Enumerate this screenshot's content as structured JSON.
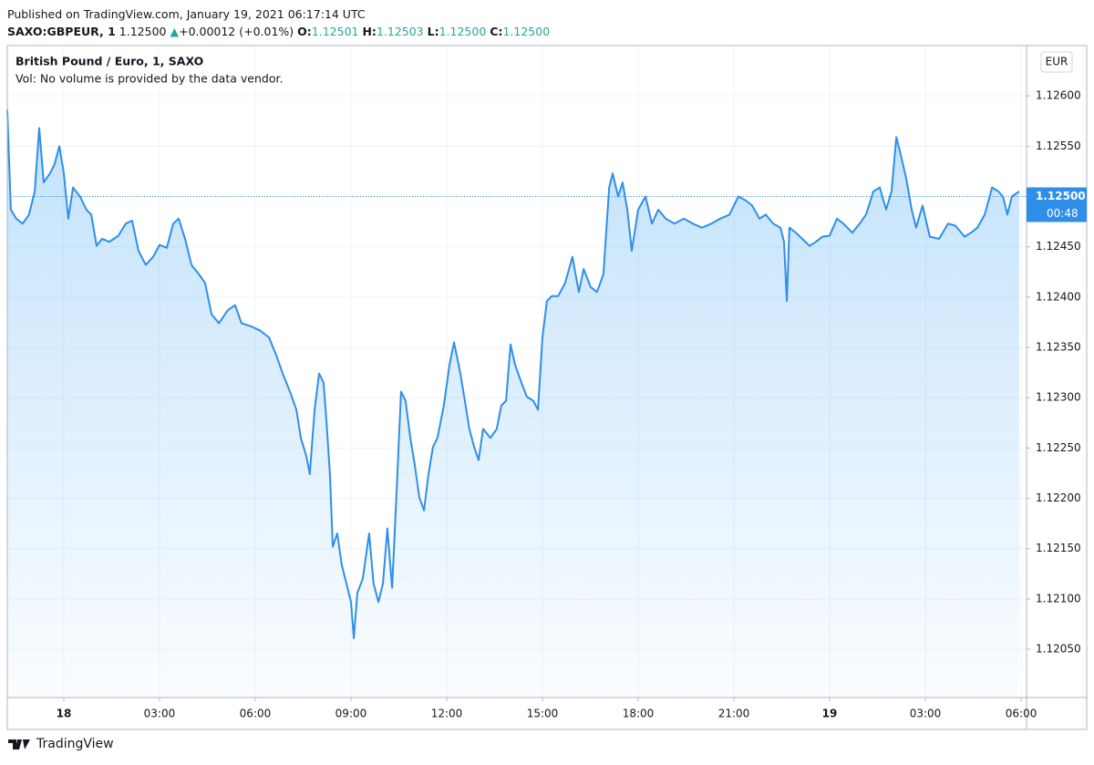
{
  "header": {
    "published": "Published on TradingView.com, January 19, 2021 06:17:14 UTC",
    "symbol": "SAXO:GBPEUR, 1",
    "last": "1.12500",
    "arrow": "▲",
    "change": "+0.00012 (+0.01%)",
    "ohlc": [
      {
        "label": "O:",
        "value": "1.12501"
      },
      {
        "label": "H:",
        "value": "1.12503"
      },
      {
        "label": "L:",
        "value": "1.12500"
      },
      {
        "label": "C:",
        "value": "1.12500"
      }
    ]
  },
  "chart_data": {
    "type": "line",
    "title": "British Pound / Euro, 1, SAXO",
    "subtitle": "Vol: No volume is provided by the data vendor.",
    "currency": "EUR",
    "countdown": "00:48",
    "price_line": {
      "value": 1.125,
      "label": "1.12500"
    },
    "color": "#2f8fe8",
    "x": [
      -1.77,
      -1.66,
      -1.49,
      -1.29,
      -1.09,
      -0.91,
      -0.77,
      -0.63,
      -0.43,
      -0.29,
      -0.14,
      0,
      0.14,
      0.29,
      0.51,
      0.71,
      0.86,
      1.03,
      1.2,
      1.43,
      1.71,
      1.94,
      2.14,
      2.34,
      2.57,
      2.8,
      3,
      3.23,
      3.43,
      3.6,
      3.8,
      4,
      4.23,
      4.43,
      4.63,
      4.86,
      5.14,
      5.37,
      5.57,
      5.86,
      6.14,
      6.43,
      6.66,
      6.86,
      7.09,
      7.29,
      7.43,
      7.6,
      7.71,
      7.86,
      8,
      8.14,
      8.23,
      8.34,
      8.43,
      8.57,
      8.71,
      8.86,
      9,
      9.09,
      9.2,
      9.37,
      9.57,
      9.71,
      9.86,
      10,
      10.14,
      10.29,
      10.43,
      10.57,
      10.71,
      10.86,
      11,
      11.14,
      11.29,
      11.43,
      11.57,
      11.71,
      11.91,
      12.09,
      12.23,
      12.43,
      12.57,
      12.71,
      12.86,
      13,
      13.14,
      13.37,
      13.57,
      13.71,
      13.86,
      14,
      14.14,
      14.34,
      14.51,
      14.71,
      14.86,
      15,
      15.14,
      15.29,
      15.49,
      15.71,
      15.94,
      16.14,
      16.29,
      16.51,
      16.71,
      16.91,
      17.09,
      17.2,
      17.37,
      17.51,
      17.66,
      17.8,
      18,
      18.23,
      18.43,
      18.63,
      18.86,
      19.14,
      19.43,
      19.71,
      20,
      20.29,
      20.57,
      20.86,
      21.14,
      21.37,
      21.57,
      21.8,
      22,
      22.23,
      22.46,
      22.57,
      22.66,
      22.74,
      22.94,
      23.14,
      23.37,
      23.57,
      23.77,
      24,
      24.23,
      24.43,
      24.71,
      24.94,
      25.14,
      25.37,
      25.57,
      25.77,
      25.94,
      26.09,
      26.23,
      26.4,
      26.57,
      26.71,
      26.91,
      27.14,
      27.43,
      27.71,
      27.94,
      28.23,
      28.43,
      28.63,
      28.86,
      29.09,
      29.29,
      29.43,
      29.57,
      29.71,
      29.94
    ],
    "values": [
      1.12586,
      1.12487,
      1.12478,
      1.12473,
      1.12482,
      1.12505,
      1.12568,
      1.12514,
      1.12523,
      1.12532,
      1.1255,
      1.12523,
      1.12478,
      1.12509,
      1.125,
      1.12487,
      1.12482,
      1.12451,
      1.12458,
      1.12455,
      1.12461,
      1.12473,
      1.12476,
      1.12446,
      1.12432,
      1.1244,
      1.12452,
      1.12449,
      1.12473,
      1.12478,
      1.12458,
      1.12432,
      1.12423,
      1.12414,
      1.12383,
      1.12374,
      1.12387,
      1.12392,
      1.12374,
      1.12371,
      1.12367,
      1.1236,
      1.12342,
      1.12324,
      1.12306,
      1.12288,
      1.1226,
      1.12242,
      1.12224,
      1.12288,
      1.12324,
      1.12315,
      1.12278,
      1.12224,
      1.12152,
      1.12165,
      1.12134,
      1.12115,
      1.12097,
      1.12061,
      1.12106,
      1.1212,
      1.12165,
      1.12115,
      1.12097,
      1.12115,
      1.1217,
      1.12111,
      1.12206,
      1.12306,
      1.12297,
      1.1226,
      1.12233,
      1.12201,
      1.12188,
      1.12224,
      1.12251,
      1.1226,
      1.12292,
      1.12333,
      1.12355,
      1.12324,
      1.12297,
      1.12269,
      1.12251,
      1.12238,
      1.12269,
      1.1226,
      1.12269,
      1.12292,
      1.12297,
      1.12353,
      1.12333,
      1.12315,
      1.12301,
      1.12297,
      1.12288,
      1.1236,
      1.12396,
      1.12401,
      1.12401,
      1.12414,
      1.1244,
      1.12405,
      1.12428,
      1.1241,
      1.12405,
      1.12423,
      1.12509,
      1.12523,
      1.125,
      1.12514,
      1.12487,
      1.12446,
      1.12487,
      1.125,
      1.12473,
      1.12487,
      1.12478,
      1.12473,
      1.12478,
      1.12473,
      1.12469,
      1.12473,
      1.12478,
      1.12482,
      1.125,
      1.12496,
      1.12491,
      1.12478,
      1.12482,
      1.12473,
      1.12469,
      1.12455,
      1.12396,
      1.12469,
      1.12464,
      1.12458,
      1.12451,
      1.12455,
      1.1246,
      1.12461,
      1.12478,
      1.12473,
      1.12464,
      1.12473,
      1.12482,
      1.12505,
      1.12509,
      1.12487,
      1.12505,
      1.12559,
      1.12541,
      1.12518,
      1.12487,
      1.12469,
      1.12491,
      1.1246,
      1.12458,
      1.12473,
      1.12471,
      1.1246,
      1.12464,
      1.12469,
      1.12482,
      1.12509,
      1.12505,
      1.125,
      1.12482,
      1.125,
      1.12505
    ],
    "xlim": [
      -1.77,
      30.17
    ],
    "ylim": [
      1.12002,
      1.1265
    ],
    "xticks": [
      {
        "value": 0,
        "label": "18"
      },
      {
        "value": 3,
        "label": "03:00"
      },
      {
        "value": 6,
        "label": "06:00"
      },
      {
        "value": 9,
        "label": "09:00"
      },
      {
        "value": 12,
        "label": "12:00"
      },
      {
        "value": 15,
        "label": "15:00"
      },
      {
        "value": 18,
        "label": "18:00"
      },
      {
        "value": 21,
        "label": "21:00"
      },
      {
        "value": 24,
        "label": "19"
      },
      {
        "value": 27,
        "label": "03:00"
      },
      {
        "value": 30,
        "label": "06:00"
      }
    ],
    "yticks": [
      {
        "value": 1.1205,
        "label": "1.12050"
      },
      {
        "value": 1.121,
        "label": "1.12100"
      },
      {
        "value": 1.1215,
        "label": "1.12150"
      },
      {
        "value": 1.122,
        "label": "1.12200"
      },
      {
        "value": 1.1225,
        "label": "1.12250"
      },
      {
        "value": 1.123,
        "label": "1.12300"
      },
      {
        "value": 1.1235,
        "label": "1.12350"
      },
      {
        "value": 1.124,
        "label": "1.12400"
      },
      {
        "value": 1.1245,
        "label": "1.12450"
      },
      {
        "value": 1.125,
        "label": "1.12500"
      },
      {
        "value": 1.1255,
        "label": "1.12550"
      },
      {
        "value": 1.126,
        "label": "1.12600"
      }
    ],
    "grid": true
  },
  "footer": {
    "brand": "TradingView"
  }
}
